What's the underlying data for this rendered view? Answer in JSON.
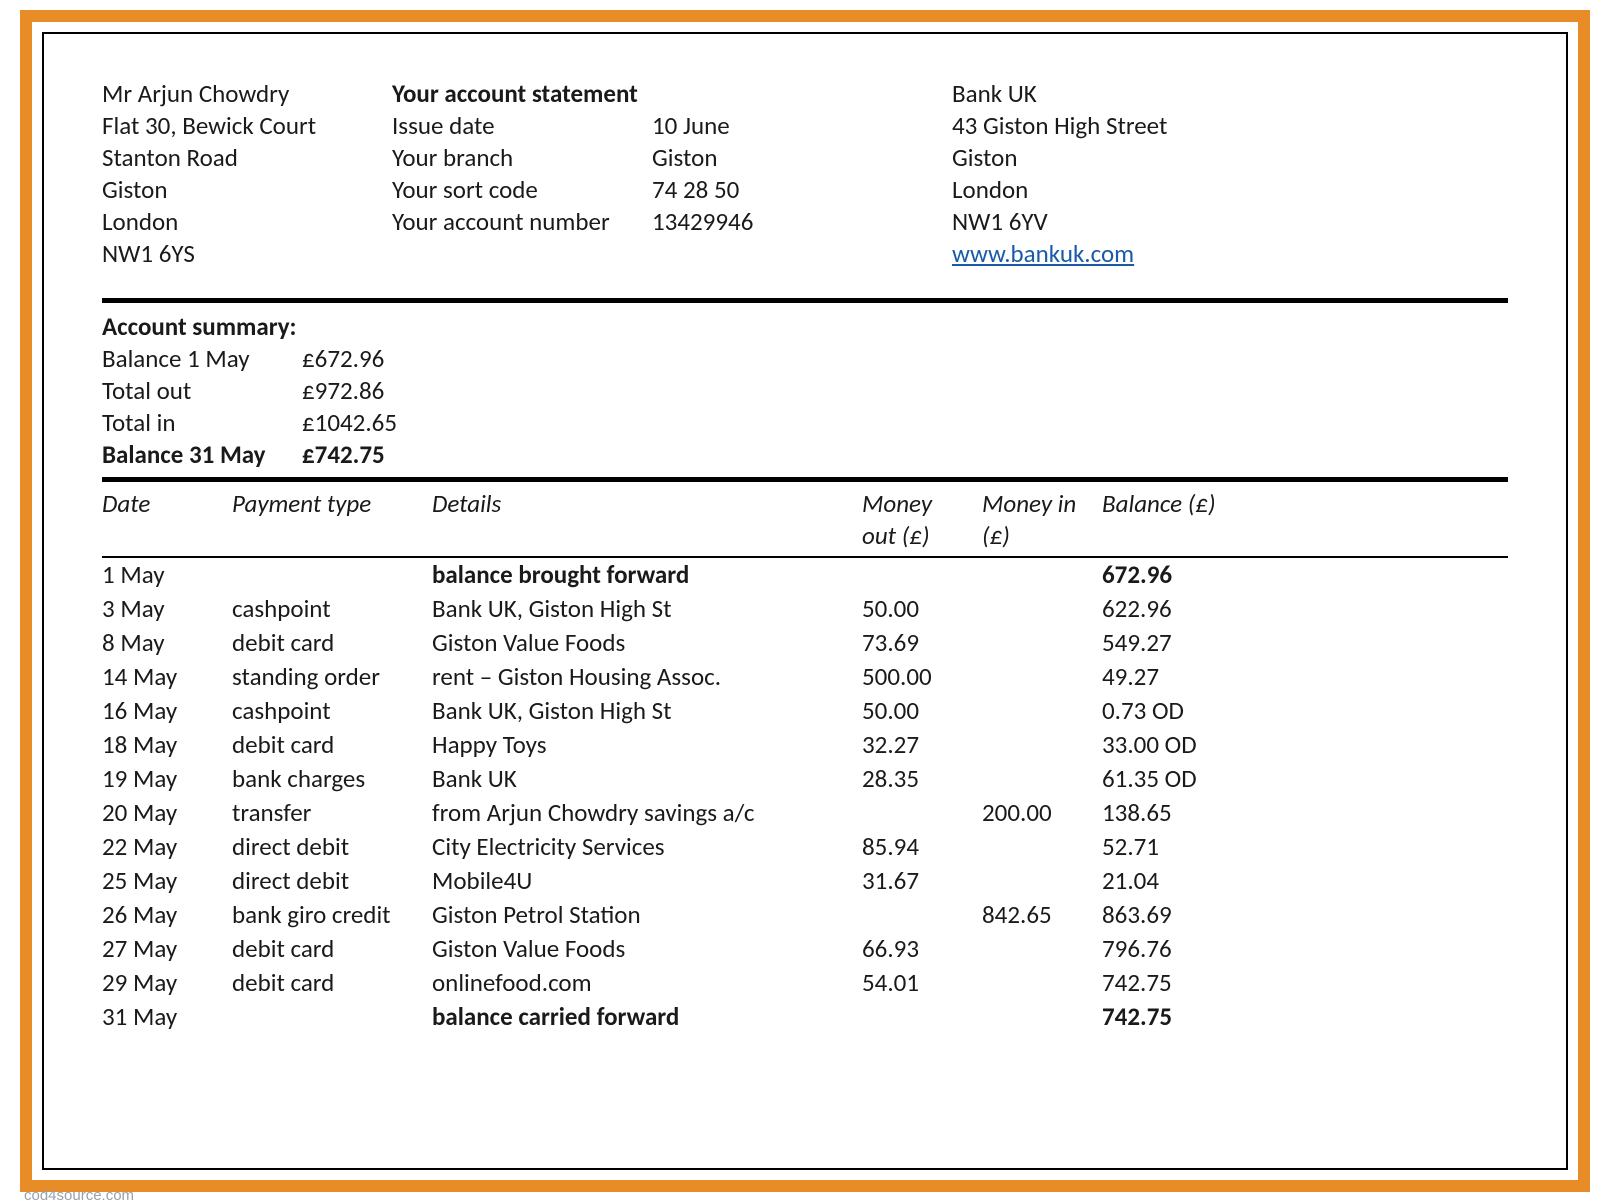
{
  "colors": {
    "frame": "#e78c27",
    "inner_border": "#000000",
    "text": "#1a1a1a",
    "link": "#1a5aa8",
    "watermark": "#9aa1a8",
    "background": "#ffffff"
  },
  "typography": {
    "font_family": "Calibri",
    "body_fontsize_pt": 19,
    "line_height": 1.28
  },
  "customer": {
    "name": "Mr Arjun Chowdry",
    "address1": "Flat 30, Bewick Court",
    "address2": "Stanton Road",
    "city": "Giston",
    "region": "London",
    "postcode": "NW1 6YS"
  },
  "statement": {
    "title": "Your account statement",
    "rows": [
      {
        "label": "Issue date",
        "value": "10 June"
      },
      {
        "label": "Your branch",
        "value": "Giston"
      },
      {
        "label": "Your sort code",
        "value": "74 28 50"
      },
      {
        "label": "Your account number",
        "value": "13429946"
      }
    ]
  },
  "bank": {
    "name": "Bank UK",
    "address1": "43 Giston High Street",
    "city": "Giston",
    "region": "London",
    "postcode": "NW1 6YV",
    "website": "www.bankuk.com"
  },
  "summary": {
    "title": "Account summary:",
    "rows": [
      {
        "label": "Balance 1 May",
        "value": "£672.96",
        "bold": false
      },
      {
        "label": "Total out",
        "value": "£972.86",
        "bold": false
      },
      {
        "label": "Total in",
        "value": "£1042.65",
        "bold": false
      },
      {
        "label": "Balance 31 May",
        "value": "£742.75",
        "bold": true
      }
    ]
  },
  "transactions": {
    "headers": {
      "date": "Date",
      "ptype": "Payment type",
      "details": "Details",
      "money_out": "Money out (£)",
      "money_in": "Money in (£)",
      "balance": "Balance (£)"
    },
    "rows": [
      {
        "date": "1 May",
        "ptype": "",
        "details": "balance brought forward",
        "out": "",
        "in": "",
        "bal": "672.96",
        "bold": true
      },
      {
        "date": "3 May",
        "ptype": "cashpoint",
        "details": "Bank UK, Giston High St",
        "out": "50.00",
        "in": "",
        "bal": "622.96",
        "bold": false
      },
      {
        "date": "8 May",
        "ptype": "debit card",
        "details": "Giston Value Foods",
        "out": "73.69",
        "in": "",
        "bal": "549.27",
        "bold": false
      },
      {
        "date": "14 May",
        "ptype": "standing order",
        "details": "rent – Giston Housing Assoc.",
        "out": "500.00",
        "in": "",
        "bal": "49.27",
        "bold": false
      },
      {
        "date": "16 May",
        "ptype": "cashpoint",
        "details": "Bank UK, Giston High St",
        "out": "50.00",
        "in": "",
        "bal": "0.73 OD",
        "bold": false
      },
      {
        "date": "18 May",
        "ptype": "debit card",
        "details": "Happy Toys",
        "out": "32.27",
        "in": "",
        "bal": "33.00 OD",
        "bold": false
      },
      {
        "date": "19 May",
        "ptype": "bank charges",
        "details": "Bank UK",
        "out": "28.35",
        "in": "",
        "bal": "61.35 OD",
        "bold": false
      },
      {
        "date": "20 May",
        "ptype": "transfer",
        "details": "from Arjun Chowdry savings a/c",
        "out": "",
        "in": "200.00",
        "bal": "138.65",
        "bold": false
      },
      {
        "date": "22 May",
        "ptype": "direct debit",
        "details": "City Electricity Services",
        "out": "85.94",
        "in": "",
        "bal": "52.71",
        "bold": false
      },
      {
        "date": "25 May",
        "ptype": "direct debit",
        "details": "Mobile4U",
        "out": "31.67",
        "in": "",
        "bal": "21.04",
        "bold": false
      },
      {
        "date": "26 May",
        "ptype": "bank giro credit",
        "details": "Giston Petrol Station",
        "out": "",
        "in": "842.65",
        "bal": "863.69",
        "bold": false
      },
      {
        "date": "27 May",
        "ptype": "debit card",
        "details": "Giston Value Foods",
        "out": "66.93",
        "in": "",
        "bal": "796.76",
        "bold": false
      },
      {
        "date": "29 May",
        "ptype": "debit card",
        "details": "onlinefood.com",
        "out": "54.01",
        "in": "",
        "bal": "742.75",
        "bold": false
      },
      {
        "date": "31 May",
        "ptype": "",
        "details": "balance carried forward",
        "out": "",
        "in": "",
        "bal": "742.75",
        "bold": true
      }
    ]
  },
  "watermark": "cod4source.com"
}
